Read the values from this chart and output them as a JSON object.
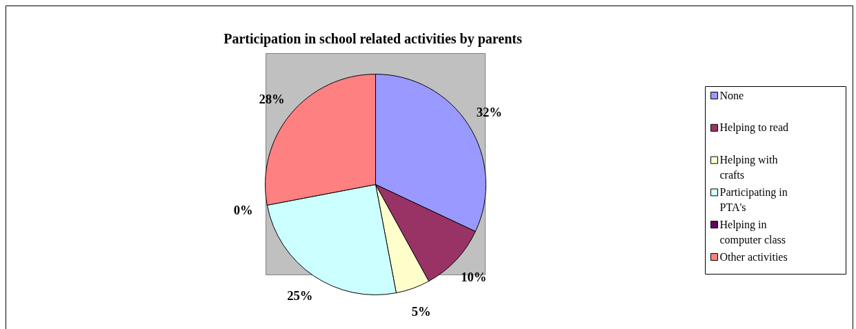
{
  "chart_data": {
    "type": "pie",
    "title": "Participation in school related activities by parents",
    "categories": [
      "None",
      "Helping to read",
      "Helping with crafts",
      "Participating in PTA's",
      "Helping in computer class",
      "Other activities"
    ],
    "values": [
      32,
      10,
      5,
      25,
      0,
      28
    ],
    "colors": [
      "#9999ff",
      "#993366",
      "#ffffcc",
      "#ccffff",
      "#660066",
      "#ff8080"
    ],
    "value_labels": [
      "32%",
      "10%",
      "5%",
      "25%",
      "0%",
      "28%"
    ],
    "legend": "right"
  }
}
